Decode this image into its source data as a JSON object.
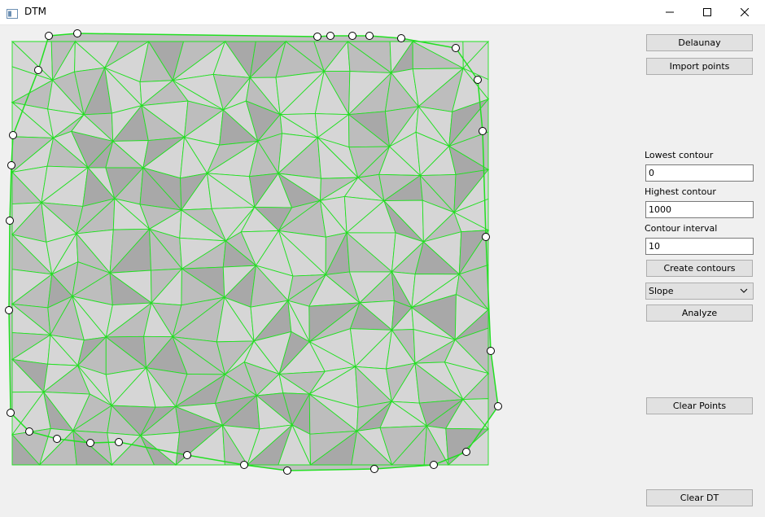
{
  "window": {
    "title": "DTM",
    "controls": {
      "minimize": "minimize",
      "maximize": "maximize",
      "close": "close"
    }
  },
  "panel": {
    "delaunay_label": "Delaunay",
    "import_label": "Import points",
    "lowest_contour": {
      "label": "Lowest contour",
      "value": "0"
    },
    "highest_contour": {
      "label": "Highest contour",
      "value": "1000"
    },
    "contour_interval": {
      "label": "Contour interval",
      "value": "10"
    },
    "create_contours_label": "Create contours",
    "analysis_select": {
      "selected": "Slope"
    },
    "analyze_label": "Analyze",
    "clear_points_label": "Clear Points",
    "clear_dt_label": "Clear DT"
  },
  "colors": {
    "mesh_edge": "#22e022",
    "point_outline": "#000000",
    "surface_light": "#d6d6d6",
    "surface_dark": "#a8a8a8"
  }
}
